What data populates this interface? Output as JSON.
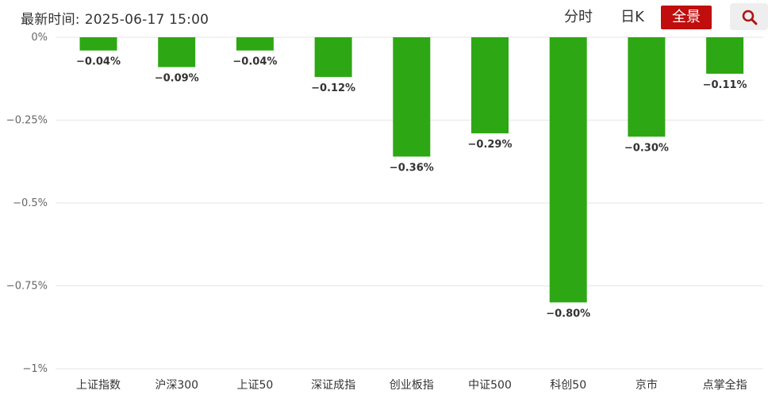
{
  "header": {
    "update_label": "最新时间:",
    "update_time": "2025-06-17 15:00",
    "tabs": [
      "分时",
      "日K",
      "全景"
    ],
    "active_tab": "全景",
    "search_icon": "search-icon"
  },
  "colors": {
    "bar": "#2ea714",
    "active_tab_bg": "#c00d0d",
    "grid": "#e6e6e6"
  },
  "chart_data": {
    "type": "bar",
    "categories": [
      "上证指数",
      "沪深300",
      "上证50",
      "深证成指",
      "创业板指",
      "中证500",
      "科创50",
      "京市",
      "点掌全指"
    ],
    "values": [
      -0.04,
      -0.09,
      -0.04,
      -0.12,
      -0.36,
      -0.29,
      -0.8,
      -0.3,
      -0.11
    ],
    "value_labels": [
      "−0.04%",
      "−0.09%",
      "−0.04%",
      "−0.12%",
      "−0.36%",
      "−0.29%",
      "−0.80%",
      "−0.30%",
      "−0.11%"
    ],
    "ylim": [
      -1,
      0
    ],
    "yticks": [
      0,
      -0.25,
      -0.5,
      -0.75,
      -1
    ],
    "ytick_labels": [
      "0%",
      "−0.25%",
      "−0.5%",
      "−0.75%",
      "−1%"
    ],
    "grid": true,
    "title": "",
    "xlabel": "",
    "ylabel": ""
  }
}
